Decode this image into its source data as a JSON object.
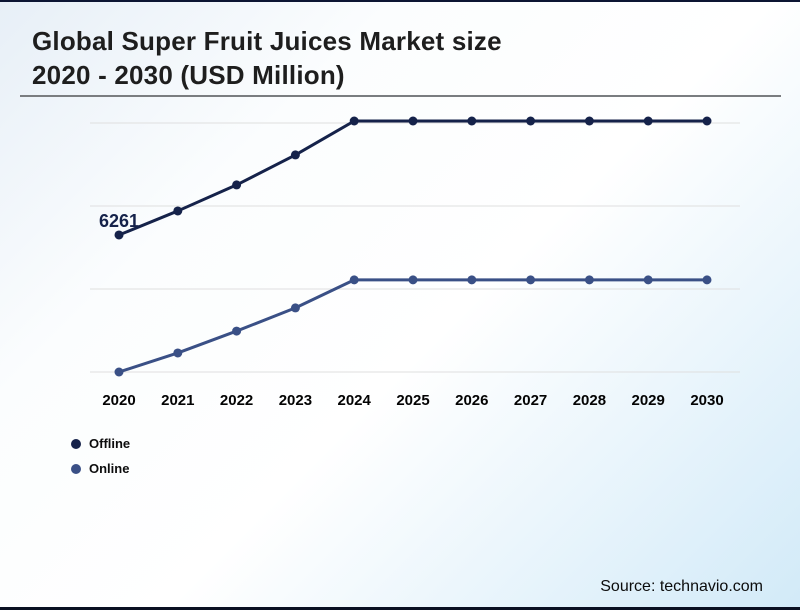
{
  "header": {
    "title_line1": "Global Super Fruit Juices Market size",
    "title_line2": "2020 - 2030 (USD Million)"
  },
  "chart_data": {
    "type": "line",
    "title": "Global Super Fruit Juices Market size 2020 - 2030 (USD Million)",
    "value_units": "USD Million",
    "categories": [
      "2020",
      "2021",
      "2022",
      "2023",
      "2024",
      "2025",
      "2026",
      "2027",
      "2028",
      "2029",
      "2030"
    ],
    "series": [
      {
        "name": "Offline",
        "color": "#15224a",
        "values": [
          6261,
          7360,
          8550,
          9920,
          11470,
          11470,
          11470,
          11470,
          11470,
          11470,
          11470
        ]
      },
      {
        "name": "Online",
        "color": "#3a5086",
        "values": [
          0,
          870,
          1870,
          2930,
          4210,
          4210,
          4210,
          4210,
          4210,
          4210,
          4210
        ]
      }
    ],
    "data_labels": [
      {
        "series": "Offline",
        "category": "2020",
        "text": "6261"
      }
    ],
    "xlabel": "",
    "ylabel": "",
    "ylim": [
      0,
      11470
    ],
    "grid": "horizontal",
    "yaxis_visible": false,
    "legend_position": "bottom-left"
  },
  "footer": {
    "source": "Source: technavio.com"
  }
}
